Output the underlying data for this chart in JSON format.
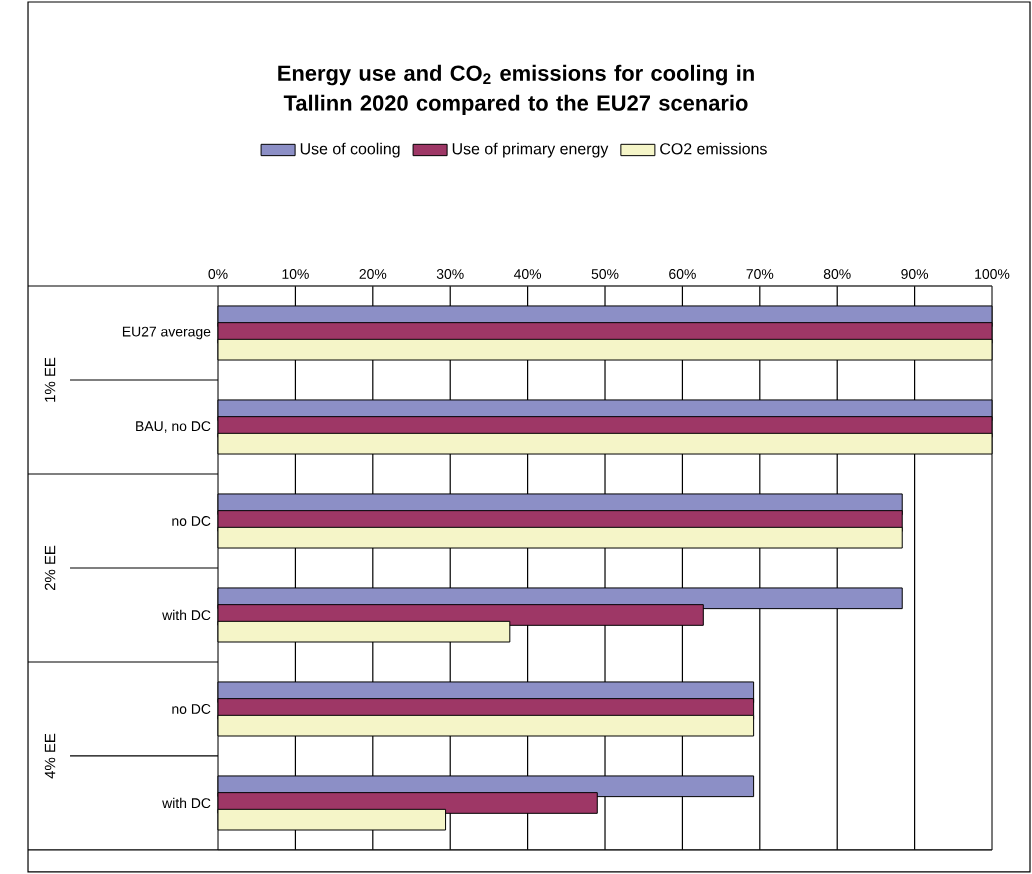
{
  "chart_data": {
    "type": "bar",
    "orientation": "horizontal",
    "title": "Energy use and CO$_{2}$ emissions for cooling in Tallinn 2020 compared to the EU27 scenario",
    "categories": [
      "EU27 average",
      "BAU, no DC",
      "no DC",
      "with DC",
      "no DC",
      "with DC"
    ],
    "series": [
      {
        "name": "Use of cooling",
        "color": "#8c8fc6",
        "values": [
          100,
          100,
          88.4,
          88.4,
          69.2,
          69.2
        ]
      },
      {
        "name": "Use of primary energy",
        "color": "#9e3766",
        "values": [
          100,
          100,
          88.4,
          62.7,
          69.2,
          49.0
        ]
      },
      {
        "name": "CO2 emissions",
        "color": "#f5f5c8",
        "values": [
          100,
          100,
          88.4,
          37.7,
          69.2,
          29.4
        ]
      }
    ],
    "annotations": [
      "1% EE",
      "2% EE",
      "4% EE"
    ],
    "xlim": [
      0,
      100
    ],
    "xticks": [
      {
        "value": 0,
        "label": "0%"
      },
      {
        "value": 10,
        "label": "10%"
      },
      {
        "value": 20,
        "label": "20%"
      },
      {
        "value": 30,
        "label": "30%"
      },
      {
        "value": 40,
        "label": "40%"
      },
      {
        "value": 50,
        "label": "50%"
      },
      {
        "value": 60,
        "label": "60%"
      },
      {
        "value": 70,
        "label": "70%"
      },
      {
        "value": 80,
        "label": "80%"
      },
      {
        "value": 90,
        "label": "90%"
      },
      {
        "value": 100,
        "label": "100%"
      }
    ],
    "grid": "x",
    "legend": "top"
  }
}
